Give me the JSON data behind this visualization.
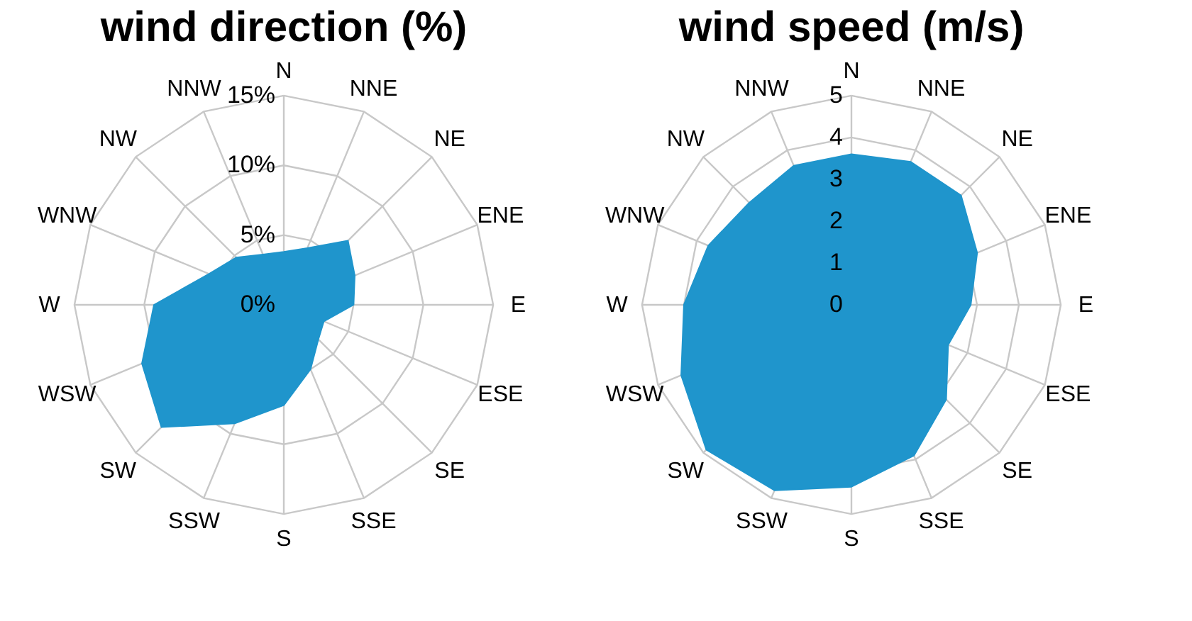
{
  "chart_data": [
    {
      "type": "radar",
      "title": "wind direction (%)",
      "categories": [
        "N",
        "NNE",
        "NE",
        "ENE",
        "E",
        "ESE",
        "SE",
        "SSE",
        "S",
        "SSW",
        "SW",
        "WSW",
        "W",
        "WNW",
        "NW",
        "NNW"
      ],
      "series": [
        {
          "color": "#1f95cc",
          "values": [
            3.8,
            4.4,
            6.5,
            5.5,
            5.0,
            3.1,
            3.5,
            5.0,
            7.2,
            9.2,
            12.4,
            11.0,
            9.3,
            5.8,
            4.8,
            3.9
          ]
        }
      ],
      "ylim": [
        0,
        15
      ],
      "yticks": [
        {
          "value": 0,
          "label": "0%"
        },
        {
          "value": 5,
          "label": "5%"
        },
        {
          "value": 10,
          "label": "10%"
        },
        {
          "value": 15,
          "label": "15%"
        }
      ],
      "grid": true
    },
    {
      "type": "radar",
      "title": "wind speed (m/s)",
      "categories": [
        "N",
        "NNE",
        "NE",
        "ENE",
        "E",
        "ESE",
        "SE",
        "SSE",
        "S",
        "SSW",
        "SW",
        "WSW",
        "W",
        "WNW",
        "NW",
        "NNW"
      ],
      "series": [
        {
          "color": "#1f95cc",
          "values": [
            3.6,
            3.7,
            3.7,
            3.25,
            2.85,
            2.5,
            3.2,
            3.9,
            4.35,
            4.8,
            4.9,
            4.4,
            4.0,
            3.7,
            3.45,
            3.6
          ]
        }
      ],
      "ylim": [
        0,
        5
      ],
      "yticks": [
        0,
        1,
        2,
        3,
        4,
        5
      ],
      "grid": true
    }
  ]
}
